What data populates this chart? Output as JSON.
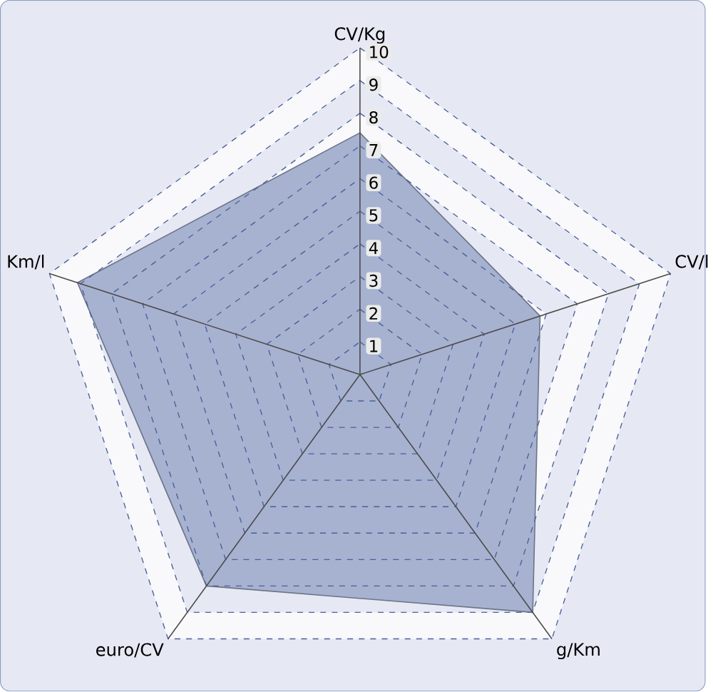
{
  "chart_data": {
    "type": "radar",
    "categories": [
      "CV/Kg",
      "CV/l",
      "g/Km",
      "euro/CV",
      "Km/l"
    ],
    "series": [
      {
        "color": "#a6b2d0",
        "values": [
          7.4,
          5.8,
          9.0,
          8.0,
          9.1
        ]
      }
    ],
    "ylim": [
      0,
      10
    ],
    "yticks": [
      1,
      2,
      3,
      4,
      5,
      6,
      7,
      8,
      9,
      10
    ],
    "grid": true
  }
}
